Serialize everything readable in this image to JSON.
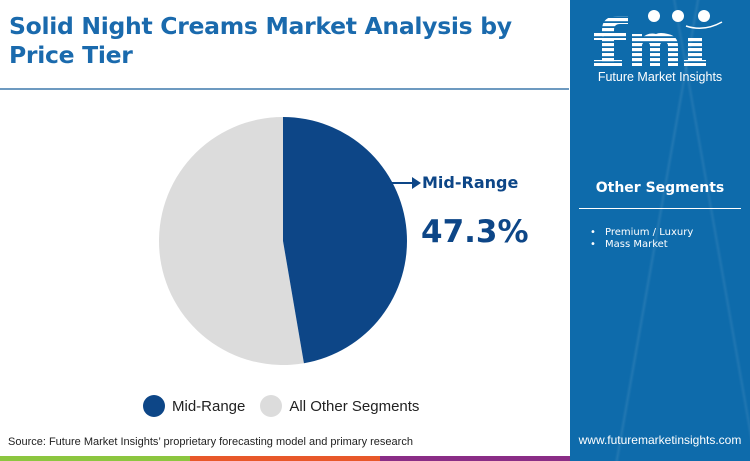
{
  "header": {
    "title": "Solid Night Creams Market Analysis by Price Tier"
  },
  "brand": {
    "logo_text": "fmi",
    "logo_subtitle": "Future Market Insights",
    "website": "www.futuremarketinsights.com",
    "panel_color": "#0e6bab"
  },
  "other_segments": {
    "title": "Other Segments",
    "items": [
      "Premium / Luxury",
      "Mass Market"
    ]
  },
  "callout": {
    "label": "Mid-Range",
    "value": "47.3%"
  },
  "legend": {
    "items": [
      {
        "label": "Mid-Range",
        "color": "#0d4687"
      },
      {
        "label": "All Other Segments",
        "color": "#dcdcdc"
      }
    ]
  },
  "footer": {
    "source": "Source: Future Market Insights’ proprietary forecasting model and primary research",
    "strip_colors": [
      "#8cc63f",
      "#e8582a",
      "#8a2d86"
    ]
  },
  "chart_data": {
    "type": "pie",
    "title": "Solid Night Creams Market Analysis by Price Tier",
    "categories": [
      "Mid-Range",
      "All Other Segments"
    ],
    "values": [
      47.3,
      52.7
    ],
    "colors": [
      "#0d4687",
      "#dcdcdc"
    ],
    "start_angle_deg": 0,
    "direction": "clockwise",
    "legend_position": "bottom",
    "annotations": [
      {
        "label": "Mid-Range",
        "value": "47.3%"
      }
    ]
  }
}
